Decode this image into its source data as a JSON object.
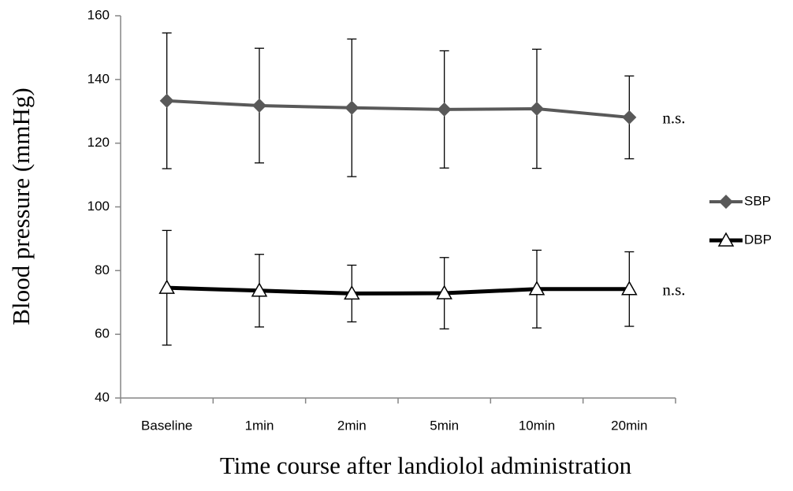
{
  "chart_data": {
    "type": "line",
    "x_label": "Time course after landiolol administration",
    "y_label": "Blood pressure (mmHg)",
    "categories": [
      "Baseline",
      "1min",
      "2min",
      "5min",
      "10min",
      "20min"
    ],
    "series": [
      {
        "name": "SBP",
        "color": "#595959",
        "marker": "diamond",
        "values": [
          133.3,
          131.8,
          131.1,
          130.6,
          130.8,
          128.1
        ],
        "errors": [
          21.3,
          18,
          21.6,
          18.4,
          18.7,
          13
        ]
      },
      {
        "name": "DBP",
        "color": "#000000",
        "marker": "triangle",
        "values": [
          74.6,
          73.7,
          72.8,
          72.9,
          74.2,
          74.2
        ],
        "errors": [
          18,
          11.4,
          8.9,
          11.2,
          12.2,
          11.7
        ]
      }
    ],
    "annotations": [
      "n.s.",
      "n.s."
    ],
    "ylim": [
      40,
      160
    ],
    "yticks": [
      40,
      60,
      80,
      100,
      120,
      140,
      160
    ],
    "grid": false,
    "legend": "right"
  }
}
